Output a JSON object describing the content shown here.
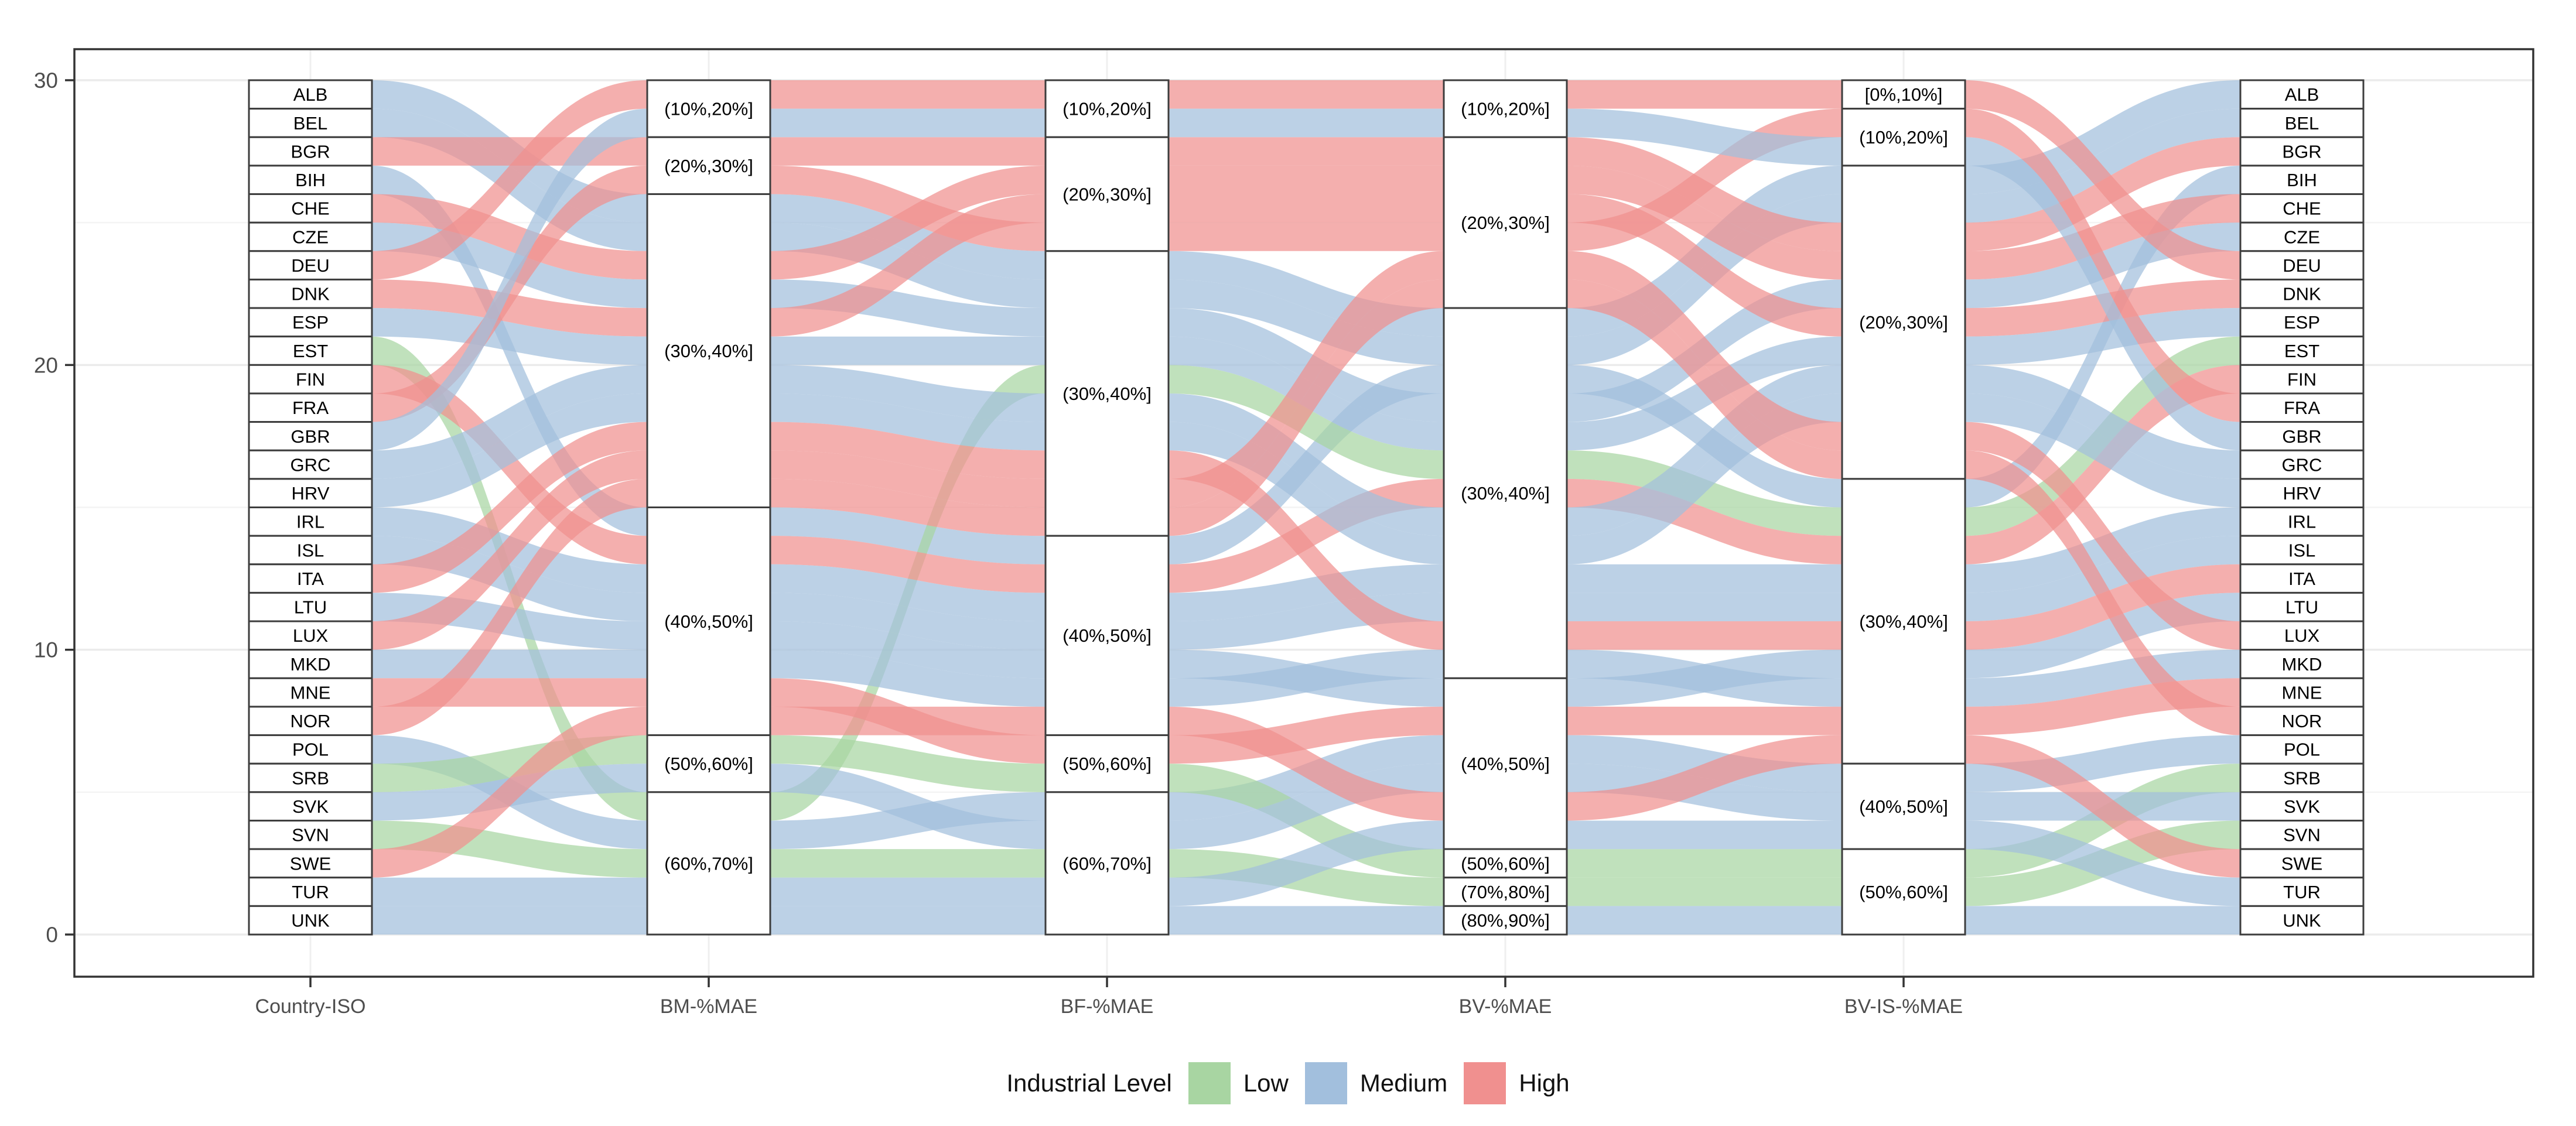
{
  "chart_data": {
    "type": "alluvial",
    "title": "",
    "y_axis": {
      "range": [
        0,
        30
      ],
      "ticks": [
        0,
        10,
        20,
        30
      ],
      "minor_ticks": [
        5,
        15,
        25
      ]
    },
    "x_axis_labels": [
      "Country-ISO",
      "BM-%MAE",
      "BF-%MAE",
      "BV-%MAE",
      "BV-IS-%MAE"
    ],
    "legend": {
      "title": "Industrial Level",
      "items": [
        {
          "label": "Low",
          "color": "#a8d5a2"
        },
        {
          "label": "Medium",
          "color": "#a2bfdd"
        },
        {
          "label": "High",
          "color": "#f0908f"
        }
      ]
    },
    "countries": [
      {
        "code": "ALB",
        "level": "Medium"
      },
      {
        "code": "BEL",
        "level": "Medium"
      },
      {
        "code": "BGR",
        "level": "High"
      },
      {
        "code": "BIH",
        "level": "Medium"
      },
      {
        "code": "CHE",
        "level": "High"
      },
      {
        "code": "CZE",
        "level": "Medium"
      },
      {
        "code": "DEU",
        "level": "High"
      },
      {
        "code": "DNK",
        "level": "High"
      },
      {
        "code": "ESP",
        "level": "Medium"
      },
      {
        "code": "EST",
        "level": "Low"
      },
      {
        "code": "FIN",
        "level": "High"
      },
      {
        "code": "FRA",
        "level": "High"
      },
      {
        "code": "GBR",
        "level": "Medium"
      },
      {
        "code": "GRC",
        "level": "Medium"
      },
      {
        "code": "HRV",
        "level": "Medium"
      },
      {
        "code": "IRL",
        "level": "Medium"
      },
      {
        "code": "ISL",
        "level": "Medium"
      },
      {
        "code": "ITA",
        "level": "High"
      },
      {
        "code": "LTU",
        "level": "Medium"
      },
      {
        "code": "LUX",
        "level": "High"
      },
      {
        "code": "MKD",
        "level": "Medium"
      },
      {
        "code": "MNE",
        "level": "High"
      },
      {
        "code": "NOR",
        "level": "High"
      },
      {
        "code": "POL",
        "level": "Medium"
      },
      {
        "code": "SRB",
        "level": "Low"
      },
      {
        "code": "SVK",
        "level": "Medium"
      },
      {
        "code": "SVN",
        "level": "Low"
      },
      {
        "code": "SWE",
        "level": "High"
      },
      {
        "code": "TUR",
        "level": "Medium"
      },
      {
        "code": "UNK",
        "level": "Medium"
      }
    ],
    "bin_axes": [
      {
        "id": "bm",
        "label": "BM-%MAE",
        "strata": [
          {
            "label": "(10%,20%]",
            "size": 2
          },
          {
            "label": "(20%,30%]",
            "size": 2
          },
          {
            "label": "(30%,40%]",
            "size": 11
          },
          {
            "label": "(40%,50%]",
            "size": 8
          },
          {
            "label": "(50%,60%]",
            "size": 2
          },
          {
            "label": "(60%,70%]",
            "size": 5
          }
        ]
      },
      {
        "id": "bf",
        "label": "BF-%MAE",
        "strata": [
          {
            "label": "(10%,20%]",
            "size": 2
          },
          {
            "label": "(20%,30%]",
            "size": 4
          },
          {
            "label": "(30%,40%]",
            "size": 10
          },
          {
            "label": "(40%,50%]",
            "size": 7
          },
          {
            "label": "(50%,60%]",
            "size": 2
          },
          {
            "label": "(60%,70%]",
            "size": 5
          }
        ]
      },
      {
        "id": "bv",
        "label": "BV-%MAE",
        "strata": [
          {
            "label": "(10%,20%]",
            "size": 2
          },
          {
            "label": "(20%,30%]",
            "size": 6
          },
          {
            "label": "(30%,40%]",
            "size": 13
          },
          {
            "label": "(40%,50%]",
            "size": 6
          },
          {
            "label": "(50%,60%]",
            "size": 1
          },
          {
            "label": "(70%,80%]",
            "size": 1
          },
          {
            "label": "(80%,90%]",
            "size": 1
          }
        ]
      },
      {
        "id": "bvis",
        "label": "BV-IS-%MAE",
        "strata": [
          {
            "label": "[0%,10%]",
            "size": 1
          },
          {
            "label": "(10%,20%]",
            "size": 2
          },
          {
            "label": "(20%,30%]",
            "size": 11
          },
          {
            "label": "(30%,40%]",
            "size": 10
          },
          {
            "label": "(40%,50%]",
            "size": 3
          },
          {
            "label": "(50%,60%]",
            "size": 3
          }
        ]
      }
    ],
    "assignments": {
      "ALB": [
        2,
        2,
        2,
        2
      ],
      "BEL": [
        2,
        2,
        2,
        2
      ],
      "BGR": [
        1,
        1,
        1,
        2
      ],
      "BIH": [
        3,
        3,
        2,
        3
      ],
      "CHE": [
        2,
        1,
        1,
        2
      ],
      "CZE": [
        2,
        2,
        2,
        2
      ],
      "DEU": [
        0,
        0,
        0,
        0
      ],
      "DNK": [
        2,
        1,
        1,
        2
      ],
      "ESP": [
        2,
        2,
        2,
        2
      ],
      "EST": [
        5,
        2,
        2,
        3
      ],
      "FIN": [
        3,
        3,
        2,
        3
      ],
      "FRA": [
        1,
        1,
        1,
        1
      ],
      "GBR": [
        0,
        0,
        0,
        1
      ],
      "GRC": [
        2,
        2,
        2,
        2
      ],
      "HRV": [
        2,
        2,
        2,
        2
      ],
      "IRL": [
        3,
        3,
        2,
        3
      ],
      "ISL": [
        3,
        3,
        2,
        3
      ],
      "ITA": [
        2,
        2,
        2,
        3
      ],
      "LTU": [
        3,
        3,
        3,
        3
      ],
      "LUX": [
        2,
        2,
        1,
        2
      ],
      "MKD": [
        3,
        3,
        2,
        3
      ],
      "MNE": [
        3,
        4,
        3,
        3
      ],
      "NOR": [
        2,
        2,
        1,
        2
      ],
      "POL": [
        5,
        5,
        3,
        4
      ],
      "SRB": [
        4,
        4,
        4,
        5
      ],
      "SVK": [
        4,
        5,
        3,
        4
      ],
      "SVN": [
        5,
        5,
        5,
        5
      ],
      "SWE": [
        3,
        3,
        3,
        3
      ],
      "TUR": [
        5,
        5,
        3,
        4
      ],
      "UNK": [
        5,
        5,
        6,
        5
      ]
    }
  }
}
